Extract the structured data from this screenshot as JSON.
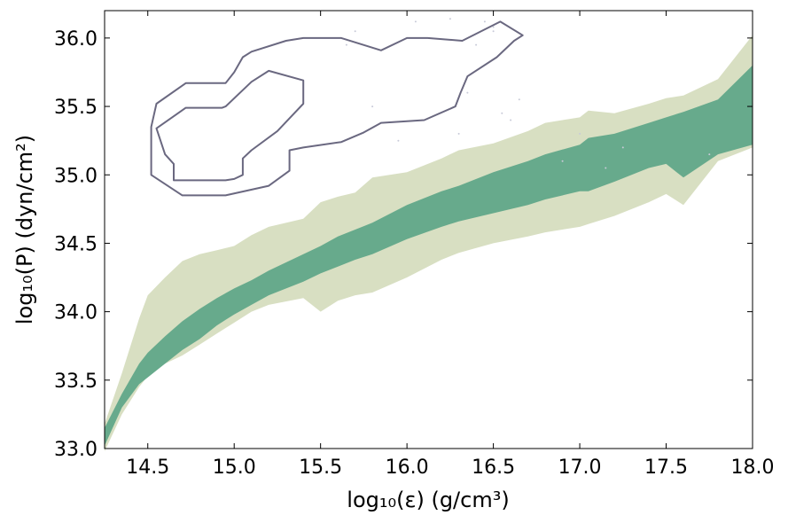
{
  "chart_data": {
    "type": "area",
    "title": "",
    "xlabel": "log₁₀(ε) (g/cm³)",
    "ylabel": "log₁₀(P) (dyn/cm²)",
    "xlim": [
      14.25,
      18.0
    ],
    "ylim": [
      33.0,
      36.2
    ],
    "x_ticks": [
      14.5,
      15.0,
      15.5,
      16.0,
      16.5,
      17.0,
      17.5,
      18.0
    ],
    "x_tick_labels": [
      "14.5",
      "15.0",
      "15.5",
      "16.0",
      "16.5",
      "17.0",
      "17.5",
      "18.0"
    ],
    "y_ticks": [
      33.0,
      33.5,
      34.0,
      34.5,
      35.0,
      35.5,
      36.0
    ],
    "y_tick_labels": [
      "33.0",
      "33.5",
      "34.0",
      "34.5",
      "35.0",
      "35.5",
      "36.0"
    ],
    "grid": false,
    "colors": {
      "outer_band": "#d8dfc2",
      "inner_band": "#67aa8c",
      "contour": "#6a6880",
      "scatter": "#c8cad8"
    },
    "outer_band": {
      "x": [
        14.25,
        14.35,
        14.45,
        14.5,
        14.6,
        14.7,
        14.8,
        14.9,
        15.0,
        15.1,
        15.2,
        15.4,
        15.5,
        15.6,
        15.7,
        15.8,
        16.0,
        16.2,
        16.3,
        16.5,
        16.7,
        16.8,
        17.0,
        17.05,
        17.2,
        17.4,
        17.5,
        17.6,
        17.8,
        18.0
      ],
      "upper": [
        33.18,
        33.55,
        33.95,
        34.12,
        34.25,
        34.37,
        34.42,
        34.45,
        34.48,
        34.56,
        34.62,
        34.68,
        34.8,
        34.84,
        34.87,
        34.98,
        35.02,
        35.12,
        35.18,
        35.23,
        35.32,
        35.38,
        35.42,
        35.47,
        35.45,
        35.52,
        35.56,
        35.58,
        35.7,
        36.02
      ],
      "lower": [
        32.98,
        33.25,
        33.45,
        33.53,
        33.62,
        33.68,
        33.76,
        33.84,
        33.92,
        34.0,
        34.05,
        34.1,
        34.0,
        34.08,
        34.12,
        34.14,
        34.25,
        34.38,
        34.43,
        34.5,
        34.55,
        34.58,
        34.62,
        34.64,
        34.7,
        34.8,
        34.86,
        34.78,
        35.1,
        35.2
      ]
    },
    "inner_band": {
      "x": [
        14.25,
        14.35,
        14.45,
        14.5,
        14.6,
        14.7,
        14.8,
        14.9,
        15.0,
        15.1,
        15.2,
        15.4,
        15.5,
        15.6,
        15.7,
        15.8,
        16.0,
        16.2,
        16.3,
        16.5,
        16.7,
        16.8,
        17.0,
        17.05,
        17.2,
        17.4,
        17.5,
        17.6,
        17.8,
        18.0
      ],
      "upper": [
        33.15,
        33.4,
        33.62,
        33.7,
        33.82,
        33.93,
        34.02,
        34.1,
        34.17,
        34.23,
        34.3,
        34.42,
        34.48,
        34.55,
        34.6,
        34.65,
        34.78,
        34.88,
        34.92,
        35.02,
        35.1,
        35.15,
        35.22,
        35.27,
        35.3,
        35.38,
        35.42,
        35.46,
        35.55,
        35.8
      ],
      "lower": [
        33.02,
        33.3,
        33.47,
        33.52,
        33.62,
        33.72,
        33.8,
        33.9,
        33.98,
        34.05,
        34.12,
        34.22,
        34.28,
        34.33,
        34.38,
        34.42,
        34.53,
        34.62,
        34.66,
        34.72,
        34.78,
        34.82,
        34.88,
        34.88,
        34.95,
        35.05,
        35.08,
        34.98,
        35.15,
        35.22
      ]
    },
    "contours": [
      {
        "x": [
          14.72,
          14.95,
          15.0,
          15.05,
          15.1,
          15.3,
          15.4,
          15.62,
          15.85,
          16.0,
          16.12,
          16.32,
          16.54,
          16.67,
          16.62,
          16.52,
          16.35,
          16.31,
          16.28,
          16.1,
          15.85,
          15.75,
          15.62,
          15.4,
          15.32,
          15.32,
          15.2,
          14.95,
          14.7,
          14.52,
          14.52,
          14.52,
          14.55,
          14.72
        ],
        "y": [
          35.67,
          35.67,
          35.75,
          35.86,
          35.9,
          35.98,
          36.0,
          36.0,
          35.91,
          36.0,
          36.0,
          35.98,
          36.12,
          36.02,
          35.98,
          35.86,
          35.72,
          35.6,
          35.5,
          35.4,
          35.38,
          35.31,
          35.24,
          35.2,
          35.18,
          35.03,
          34.92,
          34.85,
          34.85,
          35.0,
          35.2,
          35.35,
          35.52,
          35.67
        ]
      },
      {
        "x": [
          14.72,
          14.93,
          14.95,
          15.1,
          15.2,
          15.4,
          15.4,
          15.25,
          15.1,
          15.05,
          15.05,
          15.0,
          14.95,
          14.78,
          14.65,
          14.65,
          14.6,
          14.55,
          14.72
        ],
        "y": [
          35.49,
          35.49,
          35.5,
          35.68,
          35.76,
          35.69,
          35.52,
          35.32,
          35.18,
          35.12,
          35.0,
          34.97,
          34.96,
          34.96,
          34.96,
          35.08,
          35.15,
          35.34,
          35.49
        ]
      }
    ],
    "scatter_points": {
      "x": [
        15.95,
        15.65,
        15.8,
        16.4,
        16.45,
        16.5,
        16.6,
        16.35,
        16.55,
        16.9,
        17.0,
        17.15,
        17.25,
        17.75,
        16.25,
        16.5,
        15.7,
        16.05,
        16.3,
        16.65
      ],
      "y": [
        35.25,
        35.95,
        35.5,
        35.95,
        36.12,
        36.05,
        35.4,
        35.6,
        35.45,
        35.1,
        35.3,
        35.05,
        35.2,
        35.15,
        36.14,
        36.08,
        36.05,
        36.12,
        35.3,
        35.55
      ]
    }
  }
}
